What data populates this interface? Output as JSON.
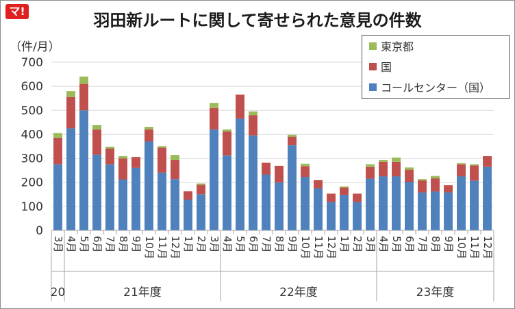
{
  "header": {
    "logo_text": "マ!",
    "title": "羽田新ルートに関して寄せられた意見の件数",
    "unit_label": "（件/月）"
  },
  "colors": {
    "call_center": "#4f81bd",
    "national": "#c0504d",
    "tokyo": "#9bbb59"
  },
  "chart_data": {
    "type": "bar",
    "stacked": true,
    "ylim": [
      0,
      700
    ],
    "yticks": [
      0,
      100,
      200,
      300,
      400,
      500,
      600,
      700
    ],
    "grid": true,
    "legend_position": "top-right",
    "categories": [
      "3月",
      "4月",
      "5月",
      "6月",
      "7月",
      "8月",
      "9月",
      "10月",
      "11月",
      "12月",
      "1月",
      "2月",
      "3月",
      "4月",
      "5月",
      "6月",
      "7月",
      "8月",
      "9月",
      "10月",
      "11月",
      "12月",
      "1月",
      "2月",
      "3月",
      "4月",
      "5月",
      "6月",
      "7月",
      "8月",
      "9月",
      "10月",
      "11月",
      "12月"
    ],
    "year_groups": [
      {
        "label": "20",
        "start": 0,
        "end": 0
      },
      {
        "label": "21年度",
        "start": 1,
        "end": 12
      },
      {
        "label": "22年度",
        "start": 13,
        "end": 24
      },
      {
        "label": "23年度",
        "start": 25,
        "end": 33
      }
    ],
    "series": [
      {
        "name": "コールセンター（国）",
        "color_key": "call_center",
        "values": [
          275,
          425,
          500,
          315,
          275,
          212,
          260,
          370,
          240,
          213,
          128,
          150,
          420,
          312,
          465,
          395,
          232,
          200,
          355,
          222,
          175,
          118,
          148,
          118,
          215,
          225,
          225,
          202,
          158,
          162,
          158,
          225,
          207,
          265
        ]
      },
      {
        "name": "国",
        "color_key": "national",
        "values": [
          110,
          130,
          110,
          105,
          65,
          88,
          45,
          50,
          105,
          80,
          35,
          40,
          90,
          100,
          100,
          85,
          50,
          68,
          35,
          45,
          35,
          35,
          30,
          35,
          50,
          60,
          60,
          50,
          50,
          55,
          30,
          50,
          63,
          45
        ]
      },
      {
        "name": "東京都",
        "color_key": "tokyo",
        "values": [
          20,
          25,
          30,
          18,
          8,
          10,
          0,
          10,
          5,
          20,
          0,
          5,
          20,
          8,
          0,
          15,
          0,
          0,
          8,
          10,
          0,
          0,
          5,
          0,
          10,
          8,
          18,
          10,
          5,
          10,
          0,
          5,
          5,
          0
        ]
      }
    ]
  }
}
